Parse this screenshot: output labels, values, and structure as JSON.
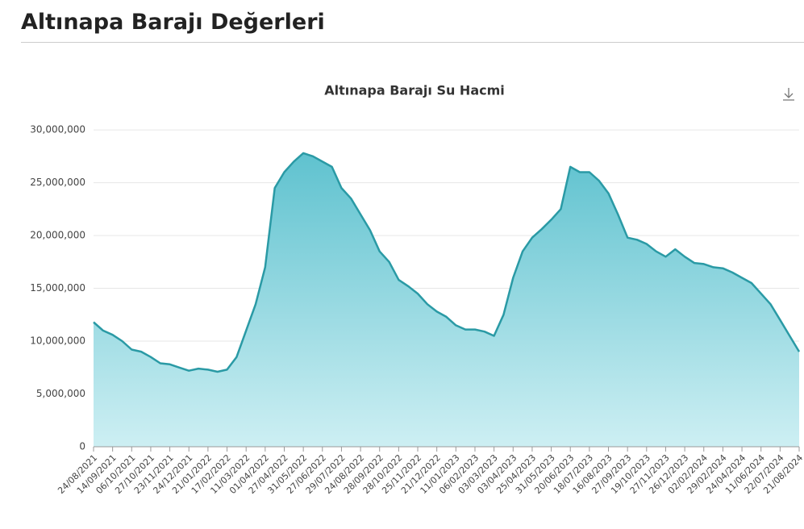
{
  "header": {
    "title": "Altınapa Barajı Değerleri"
  },
  "chart_data": {
    "type": "area",
    "title": "Altınapa Barajı Su Hacmi",
    "categories": [
      "24/08/2021",
      null,
      "14/09/2021",
      null,
      "06/10/2021",
      null,
      "27/10/2021",
      null,
      "23/11/2021",
      null,
      "24/12/2021",
      null,
      "21/01/2022",
      null,
      "17/02/2022",
      null,
      "11/03/2022",
      null,
      "01/04/2022",
      null,
      "27/04/2022",
      null,
      "31/05/2022",
      null,
      "27/06/2022",
      null,
      "29/07/2022",
      null,
      "24/08/2022",
      null,
      "28/09/2022",
      null,
      "28/10/2022",
      null,
      "25/11/2022",
      null,
      "21/12/2022",
      null,
      "11/01/2023",
      null,
      "06/02/2023",
      null,
      "03/03/2023",
      null,
      "03/04/2023",
      null,
      "25/04/2023",
      null,
      "31/05/2023",
      null,
      "20/06/2023",
      null,
      "18/07/2023",
      null,
      "16/08/2023",
      null,
      "27/09/2023",
      null,
      "19/10/2023",
      null,
      "27/11/2023",
      null,
      "26/12/2023",
      null,
      "02/02/2024",
      null,
      "29/02/2024",
      null,
      "24/04/2024",
      null,
      "11/06/2024",
      null,
      "22/07/2024",
      null,
      "21/08/2024"
    ],
    "values": [
      11800000,
      11000000,
      10600000,
      10000000,
      9200000,
      9000000,
      8500000,
      7900000,
      7800000,
      7500000,
      7200000,
      7400000,
      7300000,
      7100000,
      7300000,
      8500000,
      11000000,
      13500000,
      17000000,
      24500000,
      26000000,
      27000000,
      27800000,
      27500000,
      27000000,
      26500000,
      24500000,
      23500000,
      22000000,
      20500000,
      18500000,
      17500000,
      15800000,
      15200000,
      14500000,
      13500000,
      12800000,
      12300000,
      11500000,
      11100000,
      11100000,
      10900000,
      10500000,
      12500000,
      16000000,
      18500000,
      19800000,
      20600000,
      21500000,
      22500000,
      26500000,
      26000000,
      26000000,
      25200000,
      24000000,
      22000000,
      19800000,
      19600000,
      19200000,
      18500000,
      18000000,
      18700000,
      18000000,
      17400000,
      17300000,
      17000000,
      16900000,
      16500000,
      16000000,
      15500000,
      14500000,
      13500000,
      12000000,
      10500000,
      9000000
    ],
    "color": "#2a9aa5",
    "ylim": [
      0,
      31000000
    ],
    "yticks": [
      0,
      {
        "value": 5000000,
        "label": "5,000,000"
      },
      {
        "value": 10000000,
        "label": "10,000,000"
      },
      {
        "value": 15000000,
        "label": "15,000,000"
      },
      {
        "value": 20000000,
        "label": "20,000,000"
      },
      {
        "value": 25000000,
        "label": "25,000,000"
      },
      {
        "value": 30000000,
        "label": "30,000,000"
      }
    ],
    "grid": true
  }
}
